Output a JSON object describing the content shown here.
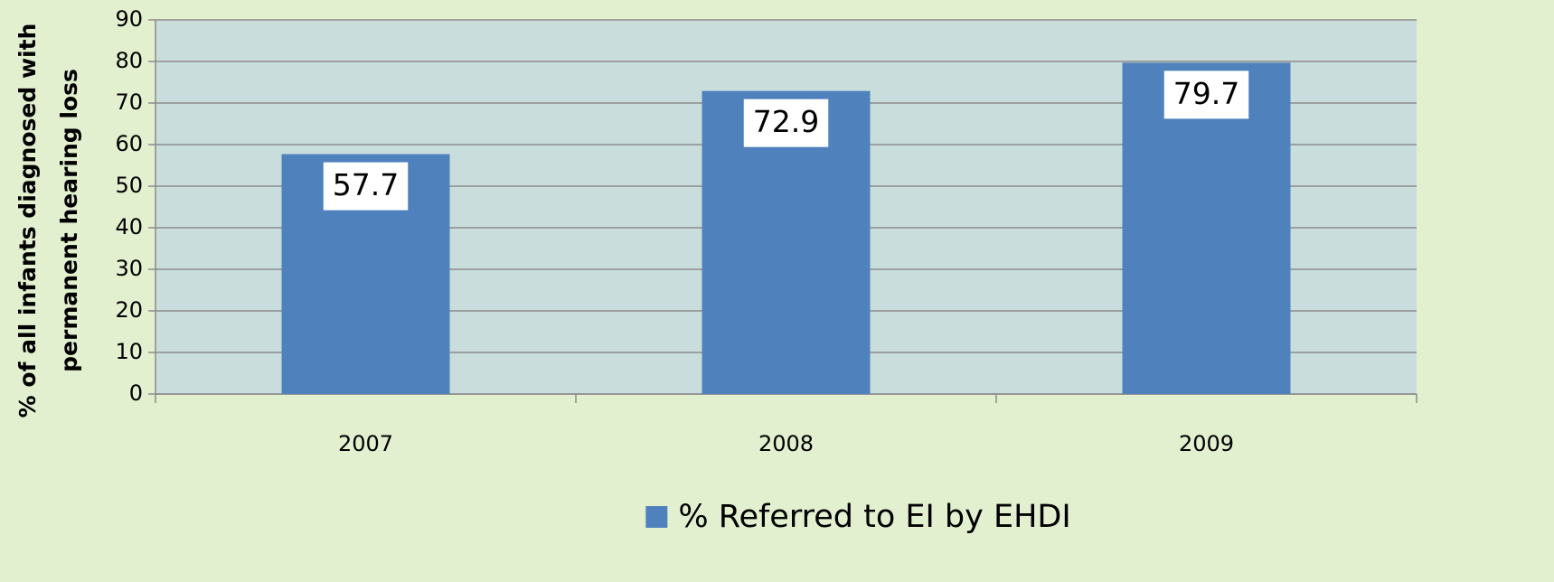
{
  "chart_data": {
    "type": "bar",
    "ylabel": [
      "% of all infants diagnosed with",
      "permanent hearing loss"
    ],
    "categories": [
      "2007",
      "2008",
      "2009"
    ],
    "series": [
      {
        "name": "% Referred to EI by EHDI",
        "color": "#4f81bd",
        "values": [
          57.7,
          72.9,
          79.7
        ]
      }
    ],
    "ylim": [
      0,
      90
    ],
    "yticks": [
      0,
      10,
      20,
      30,
      40,
      50,
      60,
      70,
      80,
      90
    ],
    "grid": true,
    "legend": "bottom"
  }
}
